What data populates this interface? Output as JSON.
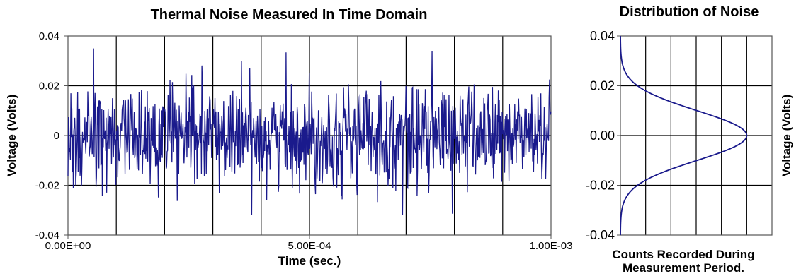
{
  "chart_data": [
    {
      "type": "line",
      "title": "Thermal Noise Measured In Time Domain",
      "xlabel": "Time (sec.)",
      "ylabel": "Voltage (Volts)",
      "xlim": [
        0,
        0.001
      ],
      "ylim": [
        -0.04,
        0.04
      ],
      "x_ticks": [
        "0.00E+00",
        "5.00E-04",
        "1.00E-03"
      ],
      "y_ticks": [
        "0.04",
        "0.02",
        "0",
        "-0.02",
        "-0.04"
      ],
      "grid": true,
      "series": [
        {
          "color": "#1a1a8c",
          "sample_count": 1000,
          "x_start": 0,
          "x_end": 0.001,
          "std_dev": 0.01,
          "peak_max": 0.035,
          "peak_min": -0.032
        }
      ]
    },
    {
      "type": "line",
      "title": "Distribution of Noise",
      "xlabel": "Counts Recorded During Measurement Period.",
      "ylabel": "Voltage (Volts)",
      "ylim": [
        -0.04,
        0.04
      ],
      "y_ticks": [
        "0.04",
        "0.02",
        "0.00",
        "-0.02",
        "-0.04"
      ],
      "grid": true,
      "series": [
        {
          "color": "#1a1a8c",
          "distribution": "gaussian",
          "mean": 0,
          "std_dev": 0.01
        }
      ]
    }
  ]
}
